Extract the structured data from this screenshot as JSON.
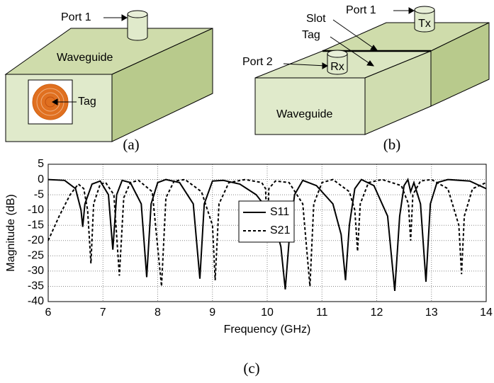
{
  "diagram_a": {
    "port": "Port 1",
    "waveguide": "Waveguide",
    "tag": "Tag",
    "caption": "(a)"
  },
  "diagram_b": {
    "port1": "Port 1",
    "tx": "Tx",
    "slot": "Slot",
    "tag": "Tag",
    "port2": "Port 2",
    "rx": "Rx",
    "waveguide": "Waveguide",
    "caption": "(b)"
  },
  "chart_data": {
    "type": "line",
    "caption": "(c)",
    "x_label": "Frequency (GHz)",
    "y_label": "Magnitude (dB)",
    "xlim": [
      6,
      14
    ],
    "xticks": [
      6,
      7,
      8,
      9,
      10,
      11,
      12,
      13,
      14
    ],
    "ylim": [
      -40,
      5
    ],
    "yticks": [
      -40,
      -35,
      -30,
      -25,
      -20,
      -15,
      -10,
      -5,
      0,
      5
    ],
    "grid": true,
    "legend": "center",
    "series": [
      {
        "name": "S11",
        "color": "#000000",
        "line_style": "solid",
        "x": [
          6,
          6.3,
          6.5,
          6.6,
          6.63,
          6.67,
          6.8,
          6.95,
          7.1,
          7.18,
          7.25,
          7.35,
          7.5,
          7.7,
          7.8,
          7.88,
          8.0,
          8.15,
          8.4,
          8.65,
          8.77,
          8.85,
          9.0,
          9.2,
          9.5,
          9.8,
          10.1,
          10.25,
          10.33,
          10.4,
          10.5,
          10.65,
          10.9,
          11.2,
          11.35,
          11.43,
          11.5,
          11.6,
          11.72,
          11.95,
          12.2,
          12.33,
          12.42,
          12.5,
          12.57,
          12.62,
          12.68,
          12.8,
          12.9,
          12.98,
          13.1,
          13.3,
          13.7,
          14
        ],
        "values": [
          0,
          -0.3,
          -3,
          -10,
          -15.5,
          -8,
          -1.5,
          -0.5,
          -5,
          -23,
          -5,
          -0.3,
          -1,
          -8,
          -32,
          -8,
          -1,
          0,
          -1,
          -8,
          -32.5,
          -8,
          -0.5,
          -0.3,
          -1.5,
          -5,
          -12,
          -22,
          -36,
          -20,
          -5,
          -0.3,
          -2,
          -8,
          -18,
          -33,
          -15,
          -3,
          0,
          -2,
          -12,
          -36.5,
          -12,
          -2,
          0,
          -4,
          -1,
          -8,
          -33.5,
          -8,
          -1,
          0,
          -0.5,
          -3
        ]
      },
      {
        "name": "S21",
        "color": "#000000",
        "line_style": "dashed",
        "x": [
          6,
          6.2,
          6.4,
          6.55,
          6.65,
          6.72,
          6.78,
          6.83,
          6.95,
          7.05,
          7.2,
          7.3,
          7.38,
          7.5,
          7.65,
          7.9,
          8.07,
          8.15,
          8.3,
          8.5,
          8.8,
          9.0,
          9.05,
          9.12,
          9.3,
          9.6,
          9.9,
          9.97,
          10.0,
          10.03,
          10.15,
          10.4,
          10.65,
          10.78,
          10.85,
          11.0,
          11.2,
          11.5,
          11.6,
          11.65,
          11.7,
          11.85,
          12.1,
          12.45,
          12.58,
          12.62,
          12.66,
          12.8,
          13.0,
          13.3,
          13.5,
          13.55,
          13.6,
          13.75,
          14
        ],
        "values": [
          -20,
          -12,
          -5,
          -1.5,
          -3,
          -10,
          -27.5,
          -8,
          -1.5,
          -1,
          -5,
          -31.5,
          -6,
          -1,
          -0.3,
          -4,
          -35,
          -6,
          -0.5,
          0,
          -4,
          -15,
          -33,
          -8,
          -1,
          0,
          -1,
          -3,
          -20,
          -3,
          -0.5,
          -1,
          -8,
          -35,
          -8,
          -1,
          0,
          -4,
          -10,
          -23.5,
          -8,
          -1,
          0,
          -2,
          -8,
          -20,
          -5,
          -0.5,
          0,
          -3,
          -15,
          -31,
          -12,
          -3,
          -1
        ]
      }
    ]
  }
}
